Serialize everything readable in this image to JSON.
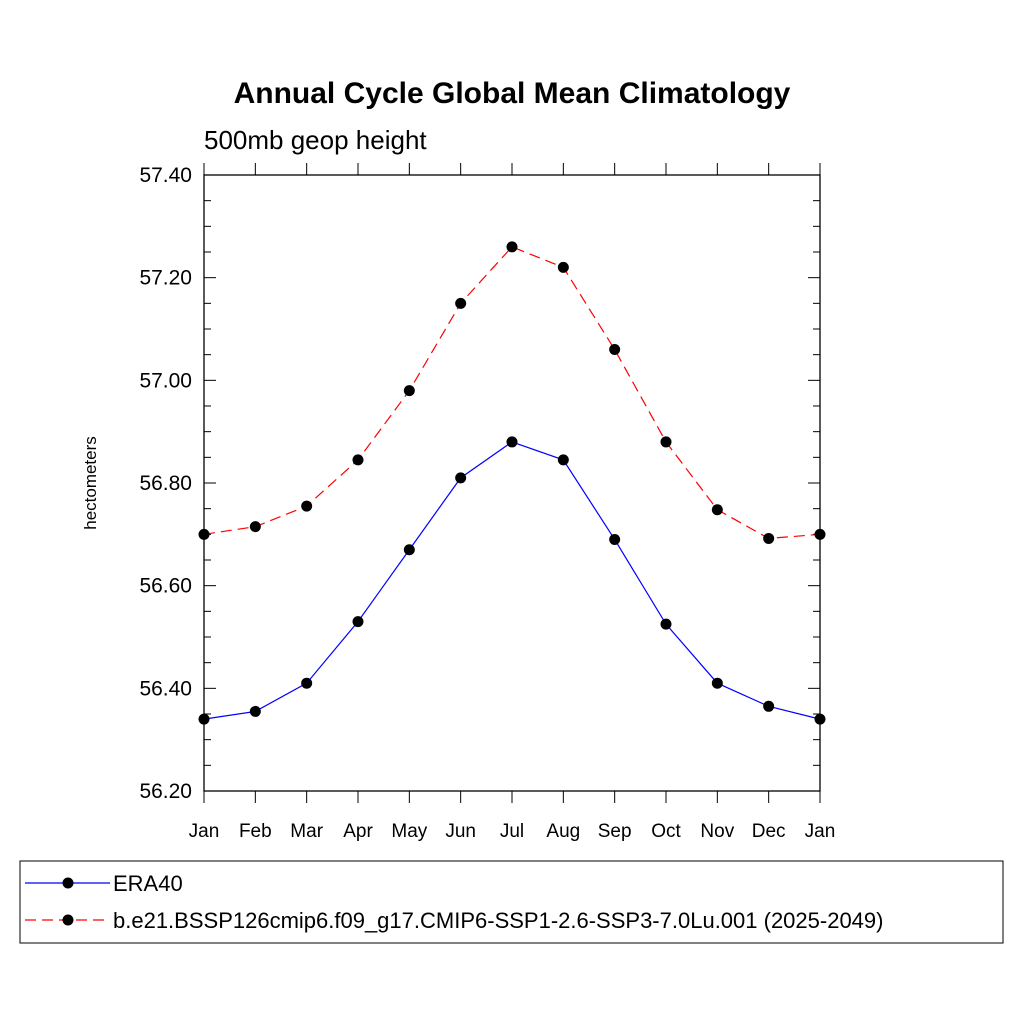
{
  "chart_data": {
    "type": "line",
    "title": "Annual Cycle Global Mean Climatology",
    "subtitle": "500mb geop height",
    "ylabel": "hectometers",
    "xlabel": "",
    "categories": [
      "Jan",
      "Feb",
      "Mar",
      "Apr",
      "May",
      "Jun",
      "Jul",
      "Aug",
      "Sep",
      "Oct",
      "Nov",
      "Dec",
      "Jan"
    ],
    "ylim": [
      56.2,
      57.4
    ],
    "yticks": [
      "56.20",
      "56.40",
      "56.60",
      "56.80",
      "57.00",
      "57.20",
      "57.40"
    ],
    "grid": false,
    "legend_position": "bottom",
    "series": [
      {
        "name": "ERA40",
        "color": "#0000ff",
        "line_style": "solid",
        "marker": "filled-circle",
        "values": [
          56.34,
          56.355,
          56.41,
          56.53,
          56.67,
          56.81,
          56.88,
          56.845,
          56.69,
          56.525,
          56.41,
          56.365,
          56.34
        ]
      },
      {
        "name": "b.e21.BSSP126cmip6.f09_g17.CMIP6-SSP1-2.6-SSP3-7.0Lu.001 (2025-2049)",
        "color": "#ff0000",
        "line_style": "dashed",
        "marker": "filled-circle",
        "values": [
          56.7,
          56.715,
          56.755,
          56.845,
          56.98,
          57.15,
          57.26,
          57.22,
          57.06,
          56.88,
          56.748,
          56.692,
          56.7
        ]
      }
    ]
  }
}
